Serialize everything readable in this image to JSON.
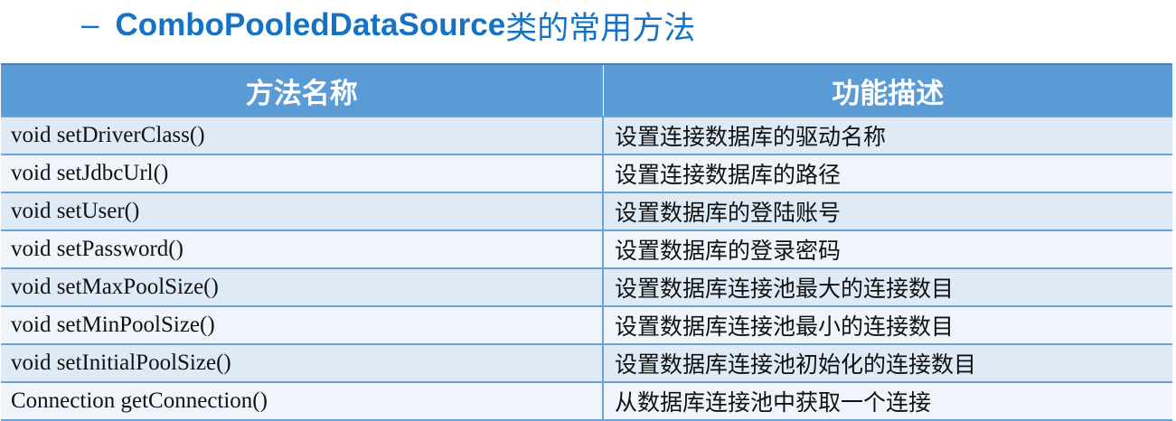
{
  "title": {
    "dash": "–",
    "main": "ComboPooledDataSource",
    "suffix": "类的常用方法"
  },
  "table": {
    "headers": [
      "方法名称",
      "功能描述"
    ],
    "rows": [
      {
        "method": "void setDriverClass()",
        "desc": "设置连接数据库的驱动名称"
      },
      {
        "method": "void setJdbcUrl()",
        "desc": "设置连接数据库的路径"
      },
      {
        "method": "void setUser()",
        "desc": "设置数据库的登陆账号"
      },
      {
        "method": "void setPassword()",
        "desc": "设置数据库的登录密码"
      },
      {
        "method": "void setMaxPoolSize()",
        "desc": "设置数据库连接池最大的连接数目"
      },
      {
        "method": "void setMinPoolSize()",
        "desc": "设置数据库连接池最小的连接数目"
      },
      {
        "method": "void setInitialPoolSize()",
        "desc": "设置数据库连接池初始化的连接数目"
      },
      {
        "method": "Connection getConnection()",
        "desc": "从数据库连接池中获取一个连接"
      }
    ]
  },
  "colors": {
    "title": "#1473c6",
    "header_bg": "#5b9bd5",
    "row_odd": "#deeaf5",
    "row_even": "#f0f5fb"
  }
}
